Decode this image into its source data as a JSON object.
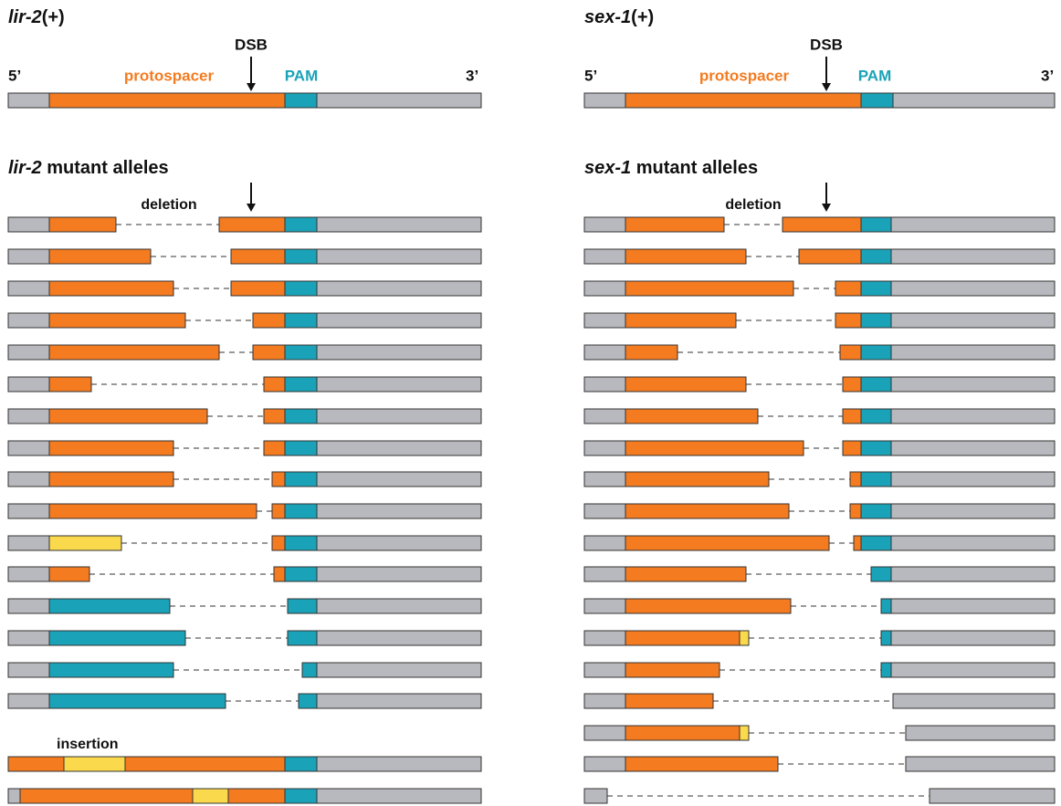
{
  "left": {
    "title": {
      "gene": "lir-2",
      "suffix": "(+)"
    },
    "dsb": "DSB",
    "five": "5’",
    "protospacer": "protospacer",
    "pam": "PAM",
    "three": "3’",
    "mutants": {
      "gene": "lir-2",
      "suffix": "mutant alleles"
    },
    "deletion": "deletion",
    "insertion": "insertion"
  },
  "right": {
    "title": {
      "gene": "sex-1",
      "suffix": "(+)"
    },
    "dsb": "DSB",
    "five": "5’",
    "protospacer": "protospacer",
    "pam": "PAM",
    "three": "3’",
    "mutants": {
      "gene": "sex-1",
      "suffix": "mutant alleles"
    },
    "deletion": "deletion"
  }
}
